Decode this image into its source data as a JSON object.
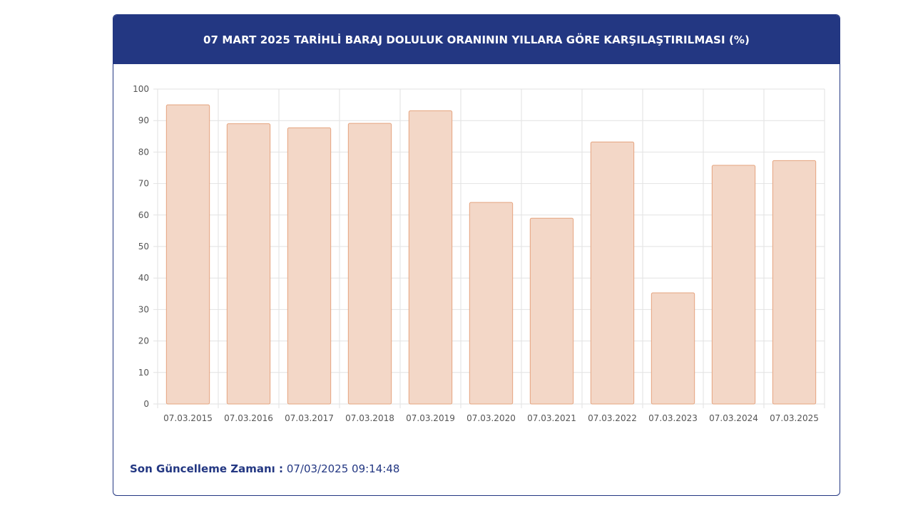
{
  "header": {
    "title": "07 MART 2025 TARİHLİ BARAJ DOLULUK ORANININ YILLARA GÖRE KARŞILAŞTIRILMASI (%)"
  },
  "footer": {
    "label": "Son Güncelleme Zamanı :",
    "value": "07/03/2025 09:14:48"
  },
  "colors": {
    "header_bg": "#233782",
    "bar_fill": "#f3d7c7",
    "bar_stroke": "#e5a47f",
    "grid": "#e2e2e2",
    "tick_text": "#555555",
    "footer_text": "#233782"
  },
  "chart_data": {
    "type": "bar",
    "title": "07 MART 2025 TARİHLİ BARAJ DOLULUK ORANININ YILLARA GÖRE KARŞILAŞTIRILMASI (%)",
    "xlabel": "",
    "ylabel": "",
    "ylim": [
      0,
      100
    ],
    "yticks": [
      0,
      10,
      20,
      30,
      40,
      50,
      60,
      70,
      80,
      90,
      100
    ],
    "grid": true,
    "categories": [
      "07.03.2015",
      "07.03.2016",
      "07.03.2017",
      "07.03.2018",
      "07.03.2019",
      "07.03.2020",
      "07.03.2021",
      "07.03.2022",
      "07.03.2023",
      "07.03.2024",
      "07.03.2025"
    ],
    "values": [
      95,
      89,
      87.7,
      89.1,
      93.1,
      64,
      59,
      83.2,
      35.3,
      75.8,
      77.3
    ]
  }
}
